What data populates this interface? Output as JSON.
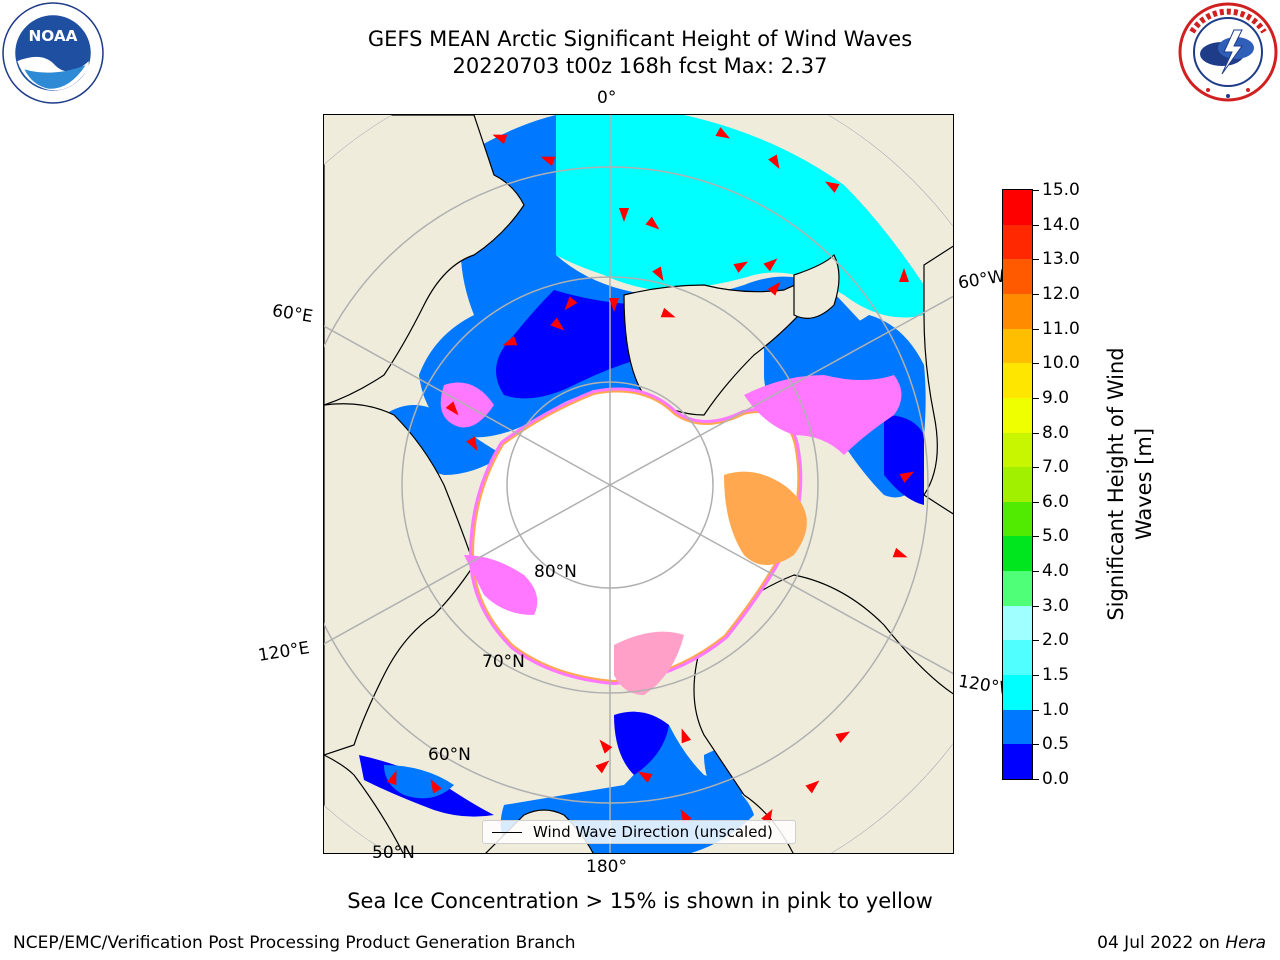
{
  "header": {
    "title_line1": "GEFS MEAN Arctic Significant Height of Wind Waves",
    "title_line2": "20220703 t00z 168h fcst   Max: 2.37"
  },
  "logos": {
    "noaa": {
      "text": "NOAA",
      "ring_text": "NATIONAL OCEANIC AND ATMOSPHERIC ADMINISTRATION · U.S. DEPARTMENT OF COMMERCE"
    },
    "nws": {
      "ring_text": "NATIONAL WEATHER SERVICE"
    }
  },
  "map": {
    "projection": "north-polar-stereographic",
    "longitude_labels": [
      "0°",
      "60°E",
      "120°E",
      "180°",
      "120°W",
      "60°W"
    ],
    "latitude_labels": [
      "80°N",
      "70°N",
      "60°N",
      "50°N"
    ],
    "legend": {
      "label": "Wind Wave Direction (unscaled)"
    },
    "colors": {
      "land": "#efecdc",
      "ice_interior": "#ffffff",
      "ice_edge": [
        "#ff78ff",
        "#ffa0c8",
        "#ffa850"
      ],
      "arrow": "#ff0000",
      "graticule": "#b0b0b0"
    }
  },
  "colorbar": {
    "label": "Significant Height of Wind Waves [m]",
    "tick_labels": [
      "0.0",
      "0.5",
      "1.0",
      "1.5",
      "2.0",
      "3.0",
      "4.0",
      "5.0",
      "6.0",
      "7.0",
      "8.0",
      "9.0",
      "10.0",
      "11.0",
      "12.0",
      "13.0",
      "14.0",
      "15.0"
    ],
    "colors": [
      "#0000ff",
      "#0078ff",
      "#00ffff",
      "#50ffff",
      "#a0ffff",
      "#50ff78",
      "#00e61e",
      "#50eb00",
      "#a0f000",
      "#c8f500",
      "#f0ff00",
      "#ffe600",
      "#ffbe00",
      "#ff8c00",
      "#ff5a00",
      "#ff2800",
      "#ff0000"
    ]
  },
  "notes": {
    "sea_ice": "Sea Ice Concentration > 15% is shown in pink to yellow"
  },
  "footer": {
    "left": "NCEP/EMC/Verification Post Processing Product Generation Branch",
    "right_date": "04 Jul 2022 on ",
    "right_host": "Hera"
  }
}
